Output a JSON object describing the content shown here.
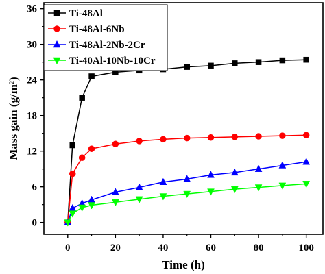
{
  "chart_data": {
    "type": "line",
    "xlabel": "Time (h)",
    "ylabel": "Mass gain (g/m²)",
    "xlim": [
      -10,
      107
    ],
    "ylim": [
      -2,
      37
    ],
    "xticks": [
      0,
      20,
      40,
      60,
      80,
      100
    ],
    "xtick_labels": [
      "0",
      "20",
      "40",
      "60",
      "80",
      "100"
    ],
    "yticks": [
      0,
      6,
      12,
      18,
      24,
      30,
      36
    ],
    "ytick_labels": [
      "0",
      "6",
      "12",
      "18",
      "24",
      "30",
      "36"
    ],
    "grid": false,
    "legend_position": "top-left",
    "series": [
      {
        "name": "Ti-48Al",
        "color": "#000000",
        "marker": "square",
        "x": [
          0,
          2,
          6,
          10,
          20,
          30,
          40,
          50,
          60,
          70,
          80,
          90,
          100
        ],
        "y": [
          0,
          13.0,
          21.0,
          24.6,
          25.3,
          25.6,
          25.8,
          26.2,
          26.4,
          26.8,
          27.0,
          27.3,
          27.4
        ]
      },
      {
        "name": "Ti-48Al-6Nb",
        "color": "#ff0000",
        "marker": "circle",
        "x": [
          0,
          2,
          6,
          10,
          20,
          30,
          40,
          50,
          60,
          70,
          80,
          90,
          100
        ],
        "y": [
          0,
          8.2,
          10.9,
          12.4,
          13.2,
          13.7,
          14.0,
          14.2,
          14.3,
          14.4,
          14.5,
          14.6,
          14.7
        ]
      },
      {
        "name": "Ti-48Al-2Nb-2Cr",
        "color": "#0000ff",
        "marker": "triangle-up",
        "x": [
          0,
          2,
          6,
          10,
          20,
          30,
          40,
          50,
          60,
          70,
          80,
          90,
          100
        ],
        "y": [
          0,
          2.4,
          3.2,
          3.8,
          5.1,
          5.9,
          6.8,
          7.3,
          8.0,
          8.4,
          9.0,
          9.6,
          10.2
        ]
      },
      {
        "name": "Ti-40Al-10Nb-10Cr",
        "color": "#00ff00",
        "marker": "triangle-down",
        "x": [
          0,
          2,
          6,
          10,
          20,
          30,
          40,
          50,
          60,
          70,
          80,
          90,
          100
        ],
        "y": [
          0,
          1.5,
          2.5,
          2.9,
          3.4,
          3.9,
          4.4,
          4.8,
          5.2,
          5.6,
          5.9,
          6.2,
          6.5
        ]
      }
    ]
  }
}
